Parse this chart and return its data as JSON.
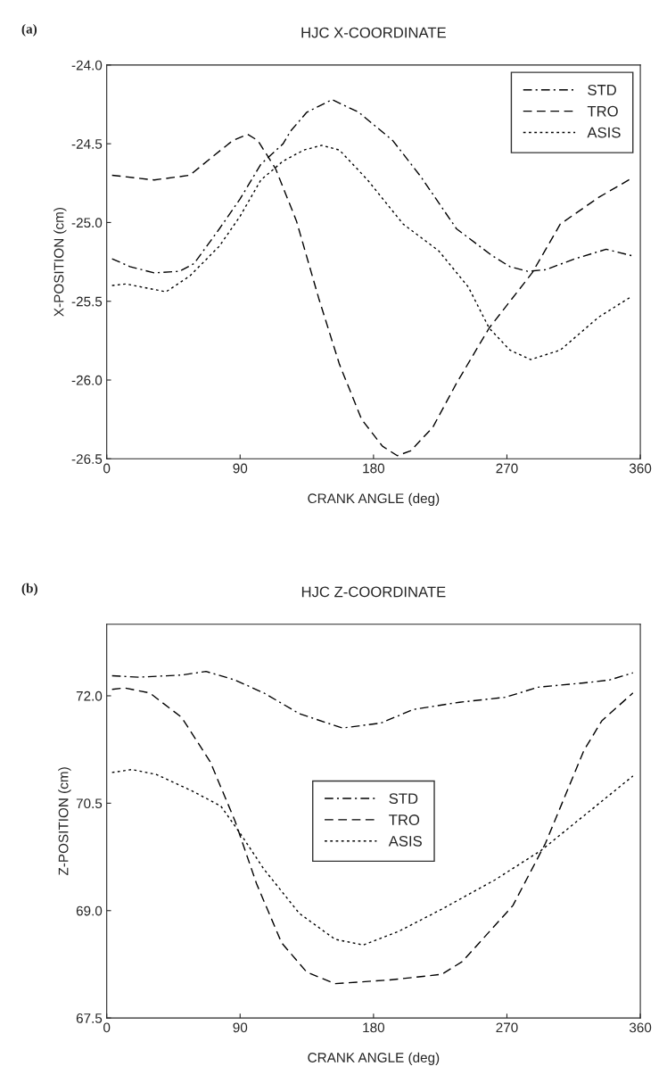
{
  "chart_data": [
    {
      "type": "line",
      "title": "HJC X-COORDINATE",
      "xlabel": "CRANK ANGLE (deg)",
      "ylabel": "X-POSITION (cm)",
      "annotations": [
        "(a)"
      ],
      "xlim": [
        0,
        360
      ],
      "xticks": [
        0,
        90,
        180,
        270,
        360
      ],
      "ylim": [
        -26.5,
        -24.0
      ],
      "yticks": [
        {
          "value": -26.5,
          "label": "-26.5"
        },
        {
          "value": -26.0,
          "label": "-26.0"
        },
        {
          "value": -25.5,
          "label": "-25.5"
        },
        {
          "value": -25.0,
          "label": "-25.0"
        },
        {
          "value": -24.5,
          "label": "-24.5"
        },
        {
          "value": -24.0,
          "label": "-24.0"
        }
      ],
      "grid": false,
      "legend": "top right",
      "series": [
        {
          "name": "STD",
          "color": "#000000",
          "line_style": "dashdot",
          "x": [
            3.6,
            15.6,
            32,
            49,
            59,
            76,
            90,
            104,
            119,
            124,
            135,
            152,
            170,
            193,
            212,
            236,
            260,
            272,
            284,
            296,
            316,
            337,
            354
          ],
          "values": [
            -25.23,
            -25.28,
            -25.32,
            -25.31,
            -25.26,
            -25.04,
            -24.85,
            -24.63,
            -24.5,
            -24.42,
            -24.3,
            -24.22,
            -24.3,
            -24.48,
            -24.71,
            -25.04,
            -25.21,
            -25.28,
            -25.31,
            -25.3,
            -25.23,
            -25.17,
            -25.21
          ]
        },
        {
          "name": "TRO",
          "color": "#000000",
          "line_style": "dashed",
          "x": [
            3.6,
            32,
            56,
            73,
            85,
            95,
            102,
            114,
            128,
            143,
            157,
            172,
            186,
            196,
            205,
            220,
            236,
            258,
            287,
            306,
            332,
            354
          ],
          "values": [
            -24.7,
            -24.73,
            -24.7,
            -24.57,
            -24.48,
            -24.44,
            -24.48,
            -24.66,
            -24.99,
            -25.48,
            -25.9,
            -26.25,
            -26.42,
            -26.48,
            -26.45,
            -26.3,
            -26.02,
            -25.67,
            -25.32,
            -25.01,
            -24.84,
            -24.72
          ]
        },
        {
          "name": "ASIS",
          "color": "#000000",
          "line_style": "dotted",
          "x": [
            3.6,
            13,
            40,
            56,
            76,
            90,
            104,
            119,
            133,
            145,
            157,
            176,
            200,
            224,
            244,
            258,
            272,
            286,
            306,
            332,
            354
          ],
          "values": [
            -25.4,
            -25.39,
            -25.44,
            -25.34,
            -25.15,
            -24.96,
            -24.73,
            -24.61,
            -24.54,
            -24.51,
            -24.54,
            -24.73,
            -25.01,
            -25.18,
            -25.41,
            -25.67,
            -25.81,
            -25.87,
            -25.81,
            -25.6,
            -25.47
          ]
        }
      ]
    },
    {
      "type": "line",
      "title": "HJC Z-COORDINATE",
      "xlabel": "CRANK ANGLE (deg)",
      "ylabel": "Z-POSITION (cm)",
      "annotations": [
        "(b)"
      ],
      "xlim": [
        0,
        360
      ],
      "xticks": [
        0,
        90,
        180,
        270,
        360
      ],
      "ylim": [
        67.5,
        73.0
      ],
      "yticks": [
        67.5,
        {
          "value": 69,
          "label": "69.0"
        },
        70.5,
        {
          "value": 72,
          "label": "72.0"
        }
      ],
      "grid": false,
      "legend": "center",
      "series": [
        {
          "name": "STD",
          "color": "#000000",
          "line_style": "dashdot",
          "x": [
            3.6,
            21.6,
            50.5,
            67,
            86.6,
            106,
            130,
            159,
            185,
            207,
            238,
            269,
            291,
            322,
            339,
            355
          ],
          "values": [
            72.28,
            72.26,
            72.29,
            72.34,
            72.22,
            72.04,
            71.75,
            71.55,
            71.62,
            71.81,
            71.91,
            71.98,
            72.12,
            72.18,
            72.22,
            72.32
          ]
        },
        {
          "name": "TRO",
          "color": "#000000",
          "line_style": "dashed",
          "x": [
            3.6,
            12,
            29,
            50.5,
            69.8,
            86.6,
            101,
            118,
            135,
            154,
            190,
            226,
            240,
            274,
            296,
            322,
            334,
            355
          ],
          "values": [
            72.09,
            72.11,
            72.04,
            71.7,
            71.08,
            70.25,
            69.38,
            68.55,
            68.14,
            67.98,
            68.03,
            68.11,
            68.29,
            69.07,
            69.94,
            71.24,
            71.65,
            72.04
          ]
        },
        {
          "name": "ASIS",
          "color": "#000000",
          "line_style": "dotted",
          "x": [
            3.6,
            17,
            33.7,
            57.7,
            77,
            91,
            106,
            130,
            154,
            173,
            197,
            226,
            262,
            293,
            327,
            355
          ],
          "values": [
            70.93,
            70.97,
            70.9,
            70.67,
            70.46,
            70.05,
            69.58,
            68.96,
            68.6,
            68.52,
            68.71,
            69.02,
            69.43,
            69.84,
            70.41,
            70.88
          ]
        }
      ]
    }
  ]
}
